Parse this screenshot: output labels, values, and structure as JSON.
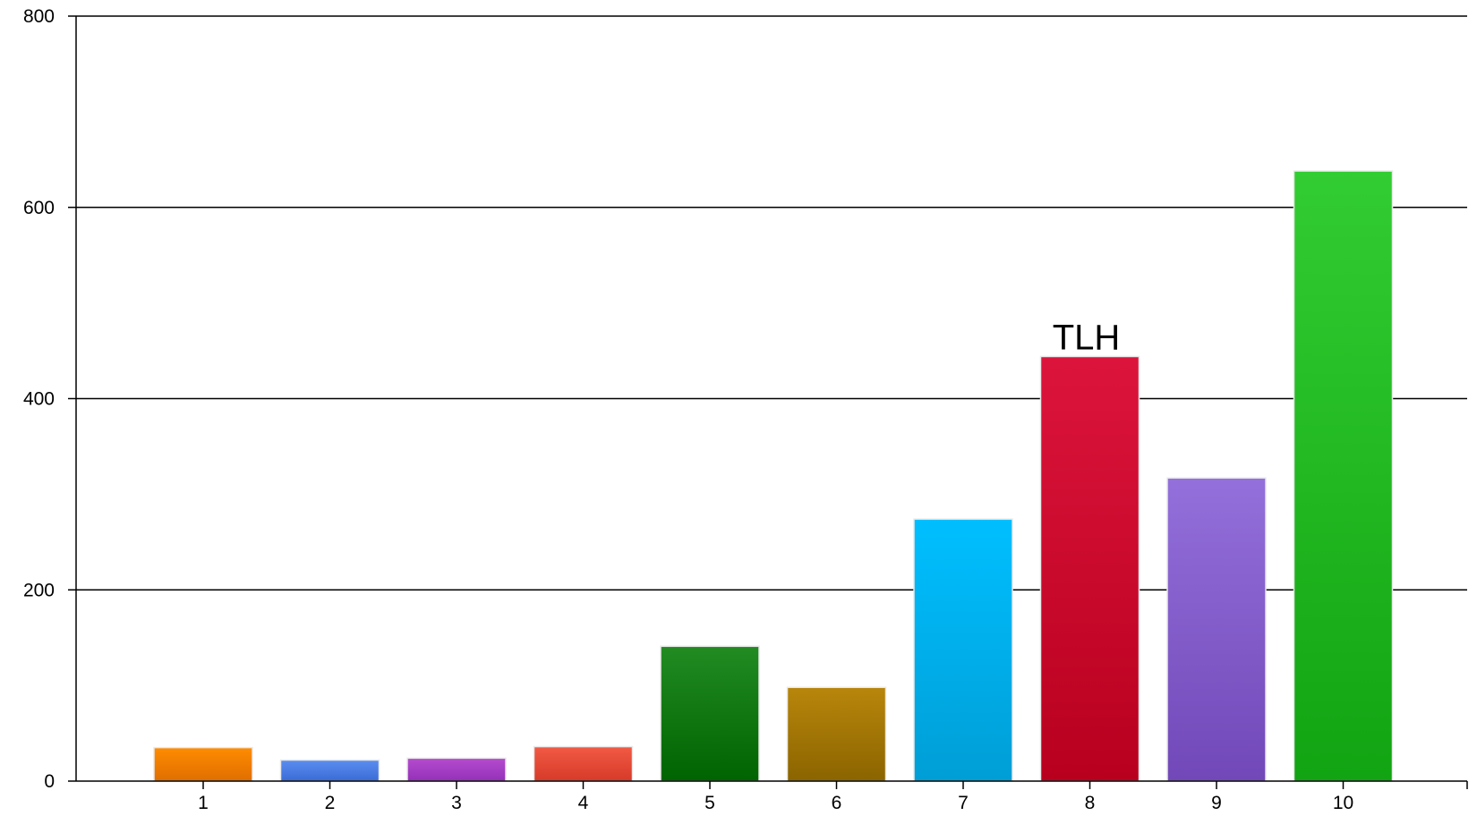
{
  "chart_data": {
    "type": "bar",
    "title": "",
    "xlabel": "",
    "ylabel": "",
    "categories": [
      "1",
      "2",
      "3",
      "4",
      "5",
      "6",
      "7",
      "8",
      "9",
      "10"
    ],
    "values": [
      35,
      22,
      24,
      36,
      141,
      98,
      274,
      444,
      317,
      638
    ],
    "ylim": [
      0,
      800
    ],
    "yticks": [
      0,
      200,
      400,
      600,
      800
    ],
    "ytick_labels": [
      "0",
      "200",
      "400",
      "600",
      "800"
    ],
    "grid": true,
    "legend": "none",
    "annotations": [
      {
        "category": "8",
        "text": "TLH"
      }
    ],
    "colors": [
      {
        "top": "#FF8C00",
        "bottom": "#E06E00"
      },
      {
        "top": "#5B8EF0",
        "bottom": "#3A6BD6"
      },
      {
        "top": "#B64CCF",
        "bottom": "#9330B8"
      },
      {
        "top": "#F25A45",
        "bottom": "#D63A28"
      },
      {
        "top": "#228B22",
        "bottom": "#006400"
      },
      {
        "top": "#B8860B",
        "bottom": "#8B6400"
      },
      {
        "top": "#00BFFF",
        "bottom": "#009ED6"
      },
      {
        "top": "#DC143C",
        "bottom": "#B8001E"
      },
      {
        "top": "#9370DB",
        "bottom": "#7248B8"
      },
      {
        "top": "#32CD32",
        "bottom": "#12A412"
      }
    ]
  }
}
